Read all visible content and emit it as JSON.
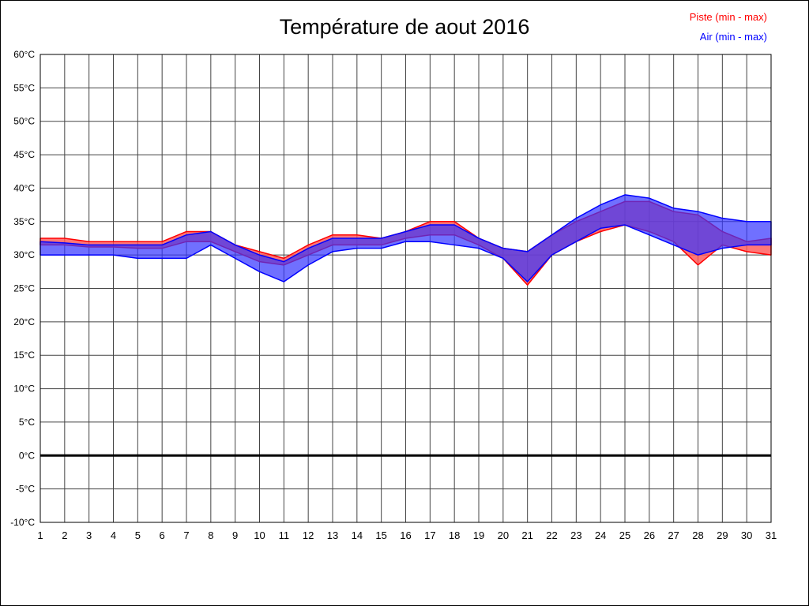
{
  "title": "Température de aout 2016",
  "legend": [
    {
      "label": "Piste (min - max)",
      "color": "#ff0000"
    },
    {
      "label": "Air (min - max)",
      "color": "#0000ff"
    }
  ],
  "chart_data": {
    "type": "area",
    "title": "Température de aout 2016",
    "xlabel": "",
    "ylabel": "",
    "x": [
      1,
      2,
      3,
      4,
      5,
      6,
      7,
      8,
      9,
      10,
      11,
      12,
      13,
      14,
      15,
      16,
      17,
      18,
      19,
      20,
      21,
      22,
      23,
      24,
      25,
      26,
      27,
      28,
      29,
      30,
      31
    ],
    "ylim": [
      -10,
      60
    ],
    "ytick_step": 5,
    "ytick_suffix": "°C",
    "grid": true,
    "grid_color": "#444444",
    "zero_line": true,
    "series": [
      {
        "id": "piste",
        "name": "Piste (min - max)",
        "color": "#ff5555",
        "stroke": "#ff0000",
        "fill_opacity": 0.8,
        "min": [
          31.5,
          31.5,
          31.2,
          31.2,
          31.0,
          31.0,
          32.0,
          32.0,
          30.5,
          29.0,
          28.5,
          30.0,
          31.5,
          31.5,
          31.5,
          32.5,
          33.0,
          33.0,
          31.5,
          29.5,
          25.5,
          30.0,
          32.0,
          33.5,
          34.5,
          33.5,
          32.0,
          28.5,
          31.5,
          30.5,
          30.0
        ],
        "max": [
          32.5,
          32.5,
          32.0,
          32.0,
          32.0,
          32.0,
          33.5,
          33.5,
          31.5,
          30.5,
          29.5,
          31.5,
          33.0,
          33.0,
          32.5,
          33.5,
          35.0,
          35.0,
          32.5,
          31.0,
          30.5,
          33.0,
          35.0,
          36.5,
          38.0,
          38.0,
          36.5,
          36.0,
          33.5,
          32.0,
          32.5
        ]
      },
      {
        "id": "air",
        "name": "Air (min - max)",
        "color": "#3333ff",
        "stroke": "#0000ff",
        "fill_opacity": 0.7,
        "min": [
          30.0,
          30.0,
          30.0,
          30.0,
          29.5,
          29.5,
          29.5,
          31.5,
          29.5,
          27.5,
          26.0,
          28.5,
          30.5,
          31.0,
          31.0,
          32.0,
          32.0,
          31.5,
          31.0,
          29.5,
          26.0,
          30.0,
          32.0,
          34.0,
          34.5,
          33.0,
          31.5,
          30.0,
          31.0,
          31.5,
          31.5
        ],
        "max": [
          32.0,
          31.8,
          31.5,
          31.5,
          31.5,
          31.5,
          33.0,
          33.5,
          31.5,
          30.0,
          29.0,
          31.0,
          32.5,
          32.5,
          32.5,
          33.5,
          34.5,
          34.5,
          32.5,
          31.0,
          30.5,
          33.0,
          35.5,
          37.5,
          39.0,
          38.5,
          37.0,
          36.5,
          35.5,
          35.0,
          35.0
        ]
      }
    ]
  }
}
